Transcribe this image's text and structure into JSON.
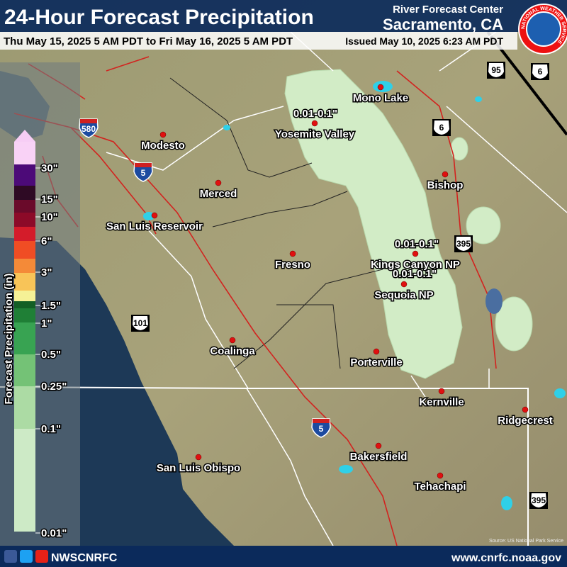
{
  "header": {
    "title": "24-Hour Forecast Precipitation",
    "period": "Thu May 15, 2025 5 AM PDT to Fri May 16, 2025 5 AM PDT",
    "office_line": "River Forecast Center",
    "office_city": "Sacramento, CA",
    "issued": "Issued May 10, 2025 6:23 AM PDT",
    "logo_text": "NATIONAL WEATHER SERVICE"
  },
  "legend": {
    "title": "Forecast Precipitation (in)",
    "labels": [
      "30\"",
      "15\"",
      "10\"",
      "6\"",
      "3\"",
      "1.5\"",
      "1\"",
      "0.5\"",
      "0.25\"",
      "0.1\"",
      "0.01\""
    ],
    "colors": [
      "#f7cdf5",
      "#f9d2f6",
      "#4c0a78",
      "#2e0a24",
      "#6a0a2a",
      "#8c0a28",
      "#d41c2a",
      "#f04d24",
      "#f48a38",
      "#f8c458",
      "#f5f196",
      "#135f25",
      "#1f7f36",
      "#38a352",
      "#74c276",
      "#acdba4",
      "#cdeac6"
    ]
  },
  "map": {
    "places": [
      "Mono Lake",
      "Yosemite Valley",
      "Modesto",
      "Merced",
      "San Luis Reservoir",
      "Fresno",
      "Bishop",
      "Kings Canyon NP",
      "Sequoia NP",
      "Coalinga",
      "Porterville",
      "Kernville",
      "Ridgecrest",
      "Bakersfield",
      "San Luis Obispo",
      "Tehachapi"
    ],
    "amounts": [
      "0.01-0.1\"",
      "0.01-0.1\"",
      "0.01-0.1\""
    ],
    "shields": [
      "580",
      "5",
      "5",
      "101",
      "95",
      "6",
      "6",
      "395",
      "395"
    ],
    "source": "Source: US National Park Service"
  },
  "footer": {
    "handle": "NWSCNRFC",
    "url": "www.cnrfc.noaa.gov"
  }
}
